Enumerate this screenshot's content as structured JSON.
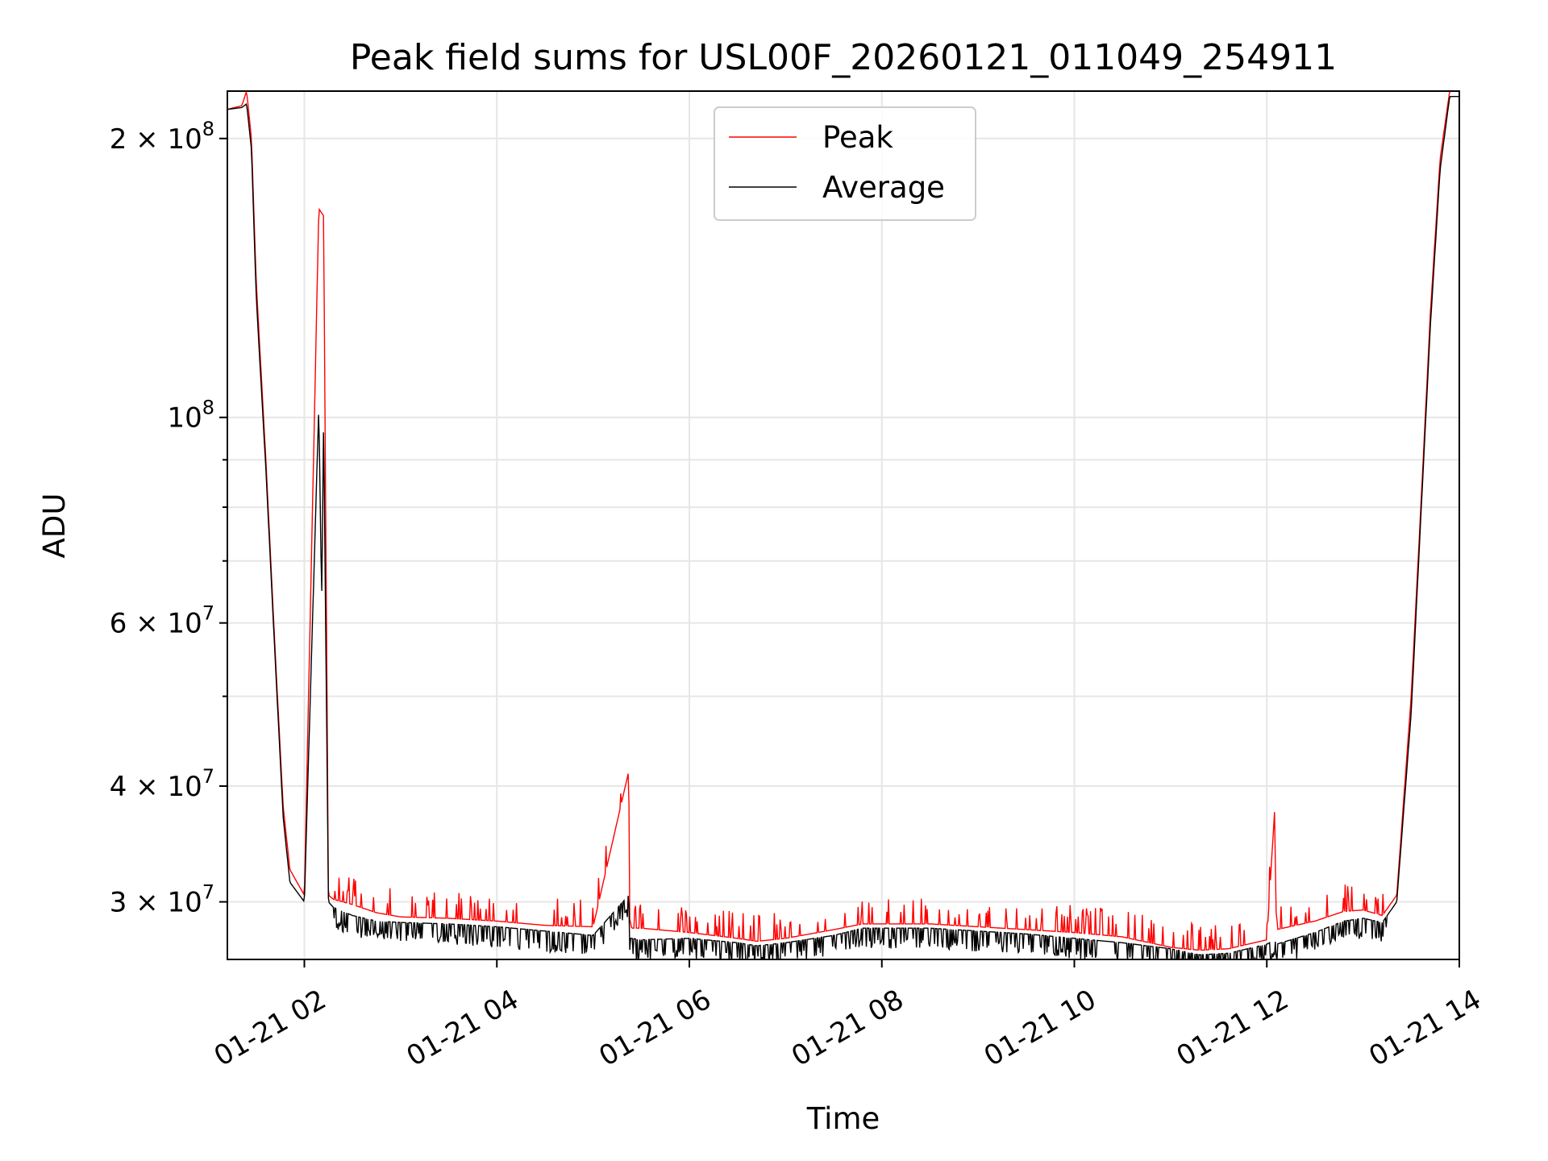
{
  "chart_data": {
    "type": "line",
    "title": "Peak field sums for USL00F_20260121_011049_254911",
    "xlabel": "Time",
    "ylabel": "ADU",
    "yscale": "log",
    "xlim_hours": [
      1.2,
      14.0
    ],
    "ylim": [
      26000000,
      225000000
    ],
    "x_ticks": [
      {
        "value": 2,
        "label": "01-21 02"
      },
      {
        "value": 4,
        "label": "01-21 04"
      },
      {
        "value": 6,
        "label": "01-21 06"
      },
      {
        "value": 8,
        "label": "01-21 08"
      },
      {
        "value": 10,
        "label": "01-21 10"
      },
      {
        "value": 12,
        "label": "01-21 12"
      },
      {
        "value": 14,
        "label": "01-21 14"
      }
    ],
    "y_major_ticks": [
      {
        "value": 200000000,
        "mantissa": "2",
        "exponent": "8"
      },
      {
        "value": 100000000,
        "mantissa": "",
        "exponent": "8"
      },
      {
        "value": 60000000,
        "mantissa": "6",
        "exponent": "7"
      },
      {
        "value": 40000000,
        "mantissa": "4",
        "exponent": "7"
      },
      {
        "value": 30000000,
        "mantissa": "3",
        "exponent": "7"
      }
    ],
    "y_minor_ticks": [
      90000000,
      80000000,
      70000000,
      50000000
    ],
    "legend": {
      "position": "upper-center"
    },
    "series": [
      {
        "name": "Peak",
        "color": "#ff0000",
        "x": [
          1.2,
          1.35,
          1.4,
          1.45,
          1.5,
          1.6,
          1.7,
          1.78,
          1.85,
          2.0,
          2.15,
          2.2,
          2.25,
          2.3,
          2.5,
          2.75,
          3.0,
          3.5,
          4.0,
          4.5,
          5.0,
          5.37,
          5.38,
          5.4,
          5.5,
          6.0,
          6.5,
          6.7,
          7.0,
          7.5,
          7.8,
          8.0,
          8.5,
          9.0,
          9.5,
          10.0,
          10.5,
          11.0,
          11.3,
          11.6,
          12.0,
          12.08,
          12.1,
          12.5,
          12.8,
          13.0,
          13.2,
          13.35,
          13.5,
          13.6,
          13.7,
          13.8,
          13.9
        ],
        "values": [
          215000000,
          217000000,
          225000000,
          200000000,
          140000000,
          90000000,
          55000000,
          38000000,
          32500000,
          30500000,
          168000000,
          165000000,
          30500000,
          30200000,
          29800000,
          29200000,
          28900000,
          28800000,
          28600000,
          28300000,
          28200000,
          41500000,
          28800000,
          28100000,
          28100000,
          27800000,
          27400000,
          27200000,
          27400000,
          28000000,
          28400000,
          28400000,
          28400000,
          28200000,
          28000000,
          27800000,
          27500000,
          26800000,
          26600000,
          26700000,
          27300000,
          37500000,
          28000000,
          28600000,
          29300000,
          29400000,
          29000000,
          30500000,
          50000000,
          80000000,
          130000000,
          190000000,
          225000000
        ]
      },
      {
        "name": "Average",
        "color": "#000000",
        "x": [
          1.2,
          1.35,
          1.4,
          1.45,
          1.5,
          1.6,
          1.7,
          1.78,
          1.85,
          2.0,
          2.15,
          2.18,
          2.2,
          2.25,
          2.3,
          2.5,
          2.75,
          3.0,
          3.5,
          4.0,
          4.5,
          5.0,
          5.37,
          5.38,
          5.4,
          5.5,
          6.0,
          6.5,
          6.7,
          7.0,
          7.5,
          7.8,
          8.0,
          8.5,
          9.0,
          9.5,
          10.0,
          10.5,
          11.0,
          11.3,
          11.6,
          12.0,
          12.08,
          12.1,
          12.5,
          12.8,
          13.0,
          13.2,
          13.35,
          13.5,
          13.6,
          13.7,
          13.8,
          13.9
        ],
        "values": [
          215000000,
          216000000,
          218000000,
          195000000,
          135000000,
          88000000,
          54000000,
          37000000,
          31500000,
          30000000,
          103000000,
          63000000,
          100000000,
          30000000,
          29600000,
          29000000,
          28600000,
          28500000,
          28400000,
          28200000,
          27900000,
          27600000,
          30500000,
          27400000,
          27400000,
          27300000,
          27400000,
          27100000,
          26900000,
          27100000,
          27600000,
          28100000,
          28100000,
          28100000,
          27900000,
          27700000,
          27400000,
          27100000,
          26700000,
          26300000,
          26400000,
          27000000,
          27300000,
          27000000,
          27800000,
          28600000,
          28800000,
          28500000,
          30000000,
          48000000,
          78000000,
          126000000,
          185000000,
          222000000
        ]
      }
    ]
  }
}
